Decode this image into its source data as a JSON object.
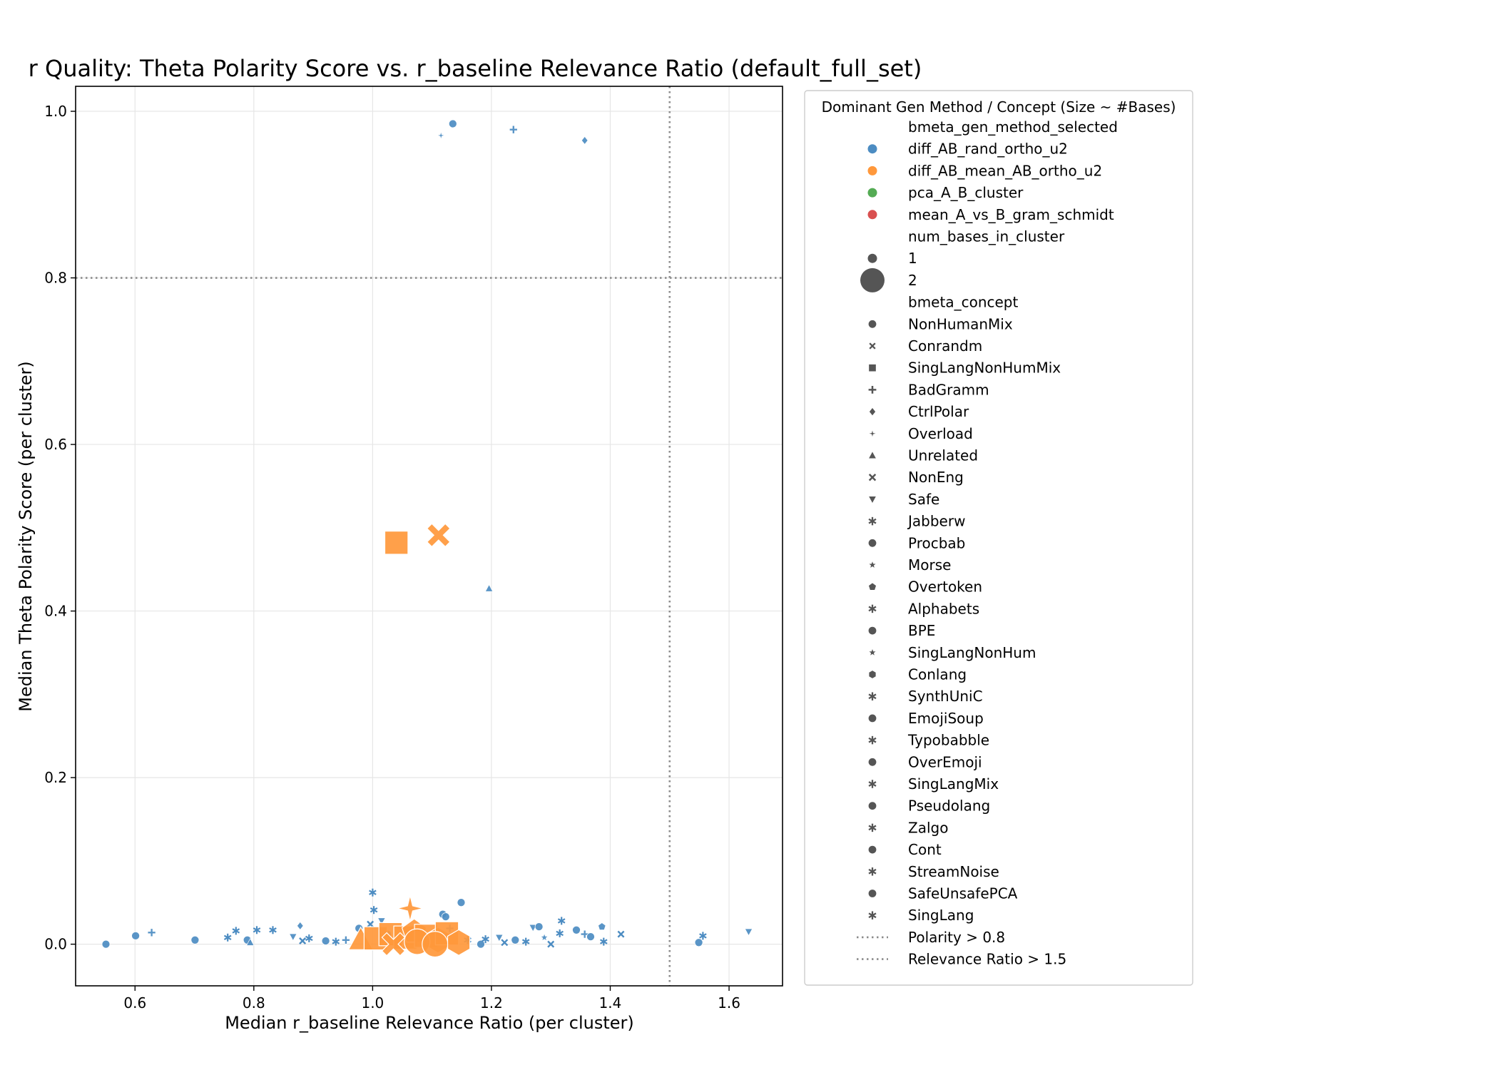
{
  "chart_data": {
    "type": "scatter",
    "title": "r Quality: Theta Polarity Score vs. r_baseline Relevance Ratio (default_full_set)",
    "xlabel": "Median r_baseline Relevance Ratio (per cluster)",
    "ylabel": "Median Theta Polarity Score (per cluster)",
    "xlim": [
      0.5,
      1.69
    ],
    "ylim": [
      -0.05,
      1.03
    ],
    "xticks": [
      0.6,
      0.8,
      1.0,
      1.2,
      1.4,
      1.6
    ],
    "yticks": [
      0.0,
      0.2,
      0.4,
      0.6,
      0.8,
      1.0
    ],
    "grid": true,
    "reference_lines": [
      {
        "orientation": "horizontal",
        "value": 0.8,
        "label": "Polarity > 0.8"
      },
      {
        "orientation": "vertical",
        "value": 1.5,
        "label": "Relevance Ratio > 1.5"
      }
    ],
    "legend": {
      "placement": "outside-right",
      "title": "Dominant Gen Method / Concept (Size ~ #Bases)",
      "hue_title": "bmeta_gen_method_selected",
      "hue": [
        {
          "name": "diff_AB_rand_ortho_u2",
          "color": "#4c8cc2"
        },
        {
          "name": "diff_AB_mean_AB_ortho_u2",
          "color": "#ff983b"
        },
        {
          "name": "pca_A_B_cluster",
          "color": "#54ab54"
        },
        {
          "name": "mean_A_vs_B_gram_schmidt",
          "color": "#d95050"
        }
      ],
      "size_title": "num_bases_in_cluster",
      "sizes": [
        {
          "name": "1",
          "value": 1
        },
        {
          "name": "2",
          "value": 2
        }
      ],
      "style_title": "bmeta_concept",
      "styles": [
        {
          "name": "NonHumanMix",
          "marker": "circle"
        },
        {
          "name": "Conrandm",
          "marker": "x"
        },
        {
          "name": "SingLangNonHumMix",
          "marker": "square"
        },
        {
          "name": "BadGramm",
          "marker": "plus"
        },
        {
          "name": "CtrlPolar",
          "marker": "diamond"
        },
        {
          "name": "Overload",
          "marker": "star4"
        },
        {
          "name": "Unrelated",
          "marker": "triangle-up"
        },
        {
          "name": "NonEng",
          "marker": "x-thin"
        },
        {
          "name": "Safe",
          "marker": "triangle-down"
        },
        {
          "name": "Jabberw",
          "marker": "asterisk"
        },
        {
          "name": "Procbab",
          "marker": "circle"
        },
        {
          "name": "Morse",
          "marker": "star5"
        },
        {
          "name": "Overtoken",
          "marker": "pentagon"
        },
        {
          "name": "Alphabets",
          "marker": "asterisk"
        },
        {
          "name": "BPE",
          "marker": "circle"
        },
        {
          "name": "SingLangNonHum",
          "marker": "star5"
        },
        {
          "name": "Conlang",
          "marker": "hexagon"
        },
        {
          "name": "SynthUniC",
          "marker": "asterisk"
        },
        {
          "name": "EmojiSoup",
          "marker": "circle"
        },
        {
          "name": "Typobabble",
          "marker": "asterisk"
        },
        {
          "name": "OverEmoji",
          "marker": "circle"
        },
        {
          "name": "SingLangMix",
          "marker": "asterisk"
        },
        {
          "name": "Pseudolang",
          "marker": "circle"
        },
        {
          "name": "Zalgo",
          "marker": "asterisk"
        },
        {
          "name": "Cont",
          "marker": "circle"
        },
        {
          "name": "StreamNoise",
          "marker": "asterisk"
        },
        {
          "name": "SafeUnsafePCA",
          "marker": "circle"
        },
        {
          "name": "SingLang",
          "marker": "asterisk"
        }
      ]
    },
    "series": [
      {
        "method": "diff_AB_rand_ortho_u2",
        "points": [
          {
            "x": 1.135,
            "y": 0.985,
            "marker": "circle",
            "size": 1
          },
          {
            "x": 1.115,
            "y": 0.971,
            "marker": "star4",
            "size": 1
          },
          {
            "x": 1.237,
            "y": 0.978,
            "marker": "plus",
            "size": 1
          },
          {
            "x": 1.357,
            "y": 0.965,
            "marker": "diamond",
            "size": 1
          },
          {
            "x": 1.196,
            "y": 0.427,
            "marker": "triangle-up",
            "size": 1
          },
          {
            "x": 0.551,
            "y": 0.0,
            "marker": "circle",
            "size": 1
          },
          {
            "x": 0.601,
            "y": 0.01,
            "marker": "circle",
            "size": 1
          },
          {
            "x": 0.628,
            "y": 0.014,
            "marker": "plus",
            "size": 1
          },
          {
            "x": 0.701,
            "y": 0.005,
            "marker": "circle",
            "size": 1
          },
          {
            "x": 0.756,
            "y": 0.008,
            "marker": "asterisk",
            "size": 1
          },
          {
            "x": 0.77,
            "y": 0.016,
            "marker": "asterisk",
            "size": 1
          },
          {
            "x": 0.789,
            "y": 0.005,
            "marker": "circle",
            "size": 1
          },
          {
            "x": 0.794,
            "y": 0.002,
            "marker": "triangle-up",
            "size": 1
          },
          {
            "x": 0.805,
            "y": 0.017,
            "marker": "asterisk",
            "size": 1
          },
          {
            "x": 0.832,
            "y": 0.017,
            "marker": "asterisk",
            "size": 1
          },
          {
            "x": 0.866,
            "y": 0.009,
            "marker": "triangle-down",
            "size": 1
          },
          {
            "x": 0.878,
            "y": 0.022,
            "marker": "diamond",
            "size": 1
          },
          {
            "x": 0.882,
            "y": 0.004,
            "marker": "x-thin",
            "size": 1
          },
          {
            "x": 0.893,
            "y": 0.007,
            "marker": "asterisk",
            "size": 1
          },
          {
            "x": 0.921,
            "y": 0.004,
            "marker": "circle",
            "size": 1
          },
          {
            "x": 0.938,
            "y": 0.003,
            "marker": "asterisk",
            "size": 1
          },
          {
            "x": 0.955,
            "y": 0.005,
            "marker": "plus",
            "size": 1
          },
          {
            "x": 0.977,
            "y": 0.019,
            "marker": "circle",
            "size": 1
          },
          {
            "x": 0.996,
            "y": 0.024,
            "marker": "x-thin",
            "size": 1
          },
          {
            "x": 1.0,
            "y": 0.062,
            "marker": "asterisk",
            "size": 1
          },
          {
            "x": 1.002,
            "y": 0.041,
            "marker": "asterisk",
            "size": 1
          },
          {
            "x": 1.015,
            "y": 0.028,
            "marker": "triangle-down",
            "size": 1
          },
          {
            "x": 1.025,
            "y": 0.012,
            "marker": "circle",
            "size": 1
          },
          {
            "x": 1.118,
            "y": 0.036,
            "marker": "circle",
            "size": 1
          },
          {
            "x": 1.123,
            "y": 0.033,
            "marker": "circle",
            "size": 1
          },
          {
            "x": 1.149,
            "y": 0.05,
            "marker": "circle",
            "size": 1
          },
          {
            "x": 1.13,
            "y": 0.019,
            "marker": "plus",
            "size": 1
          },
          {
            "x": 1.16,
            "y": 0.005,
            "marker": "asterisk",
            "size": 1
          },
          {
            "x": 1.182,
            "y": 0.0,
            "marker": "circle",
            "size": 1
          },
          {
            "x": 1.19,
            "y": 0.006,
            "marker": "asterisk",
            "size": 1
          },
          {
            "x": 1.213,
            "y": 0.008,
            "marker": "triangle-down",
            "size": 1
          },
          {
            "x": 1.222,
            "y": 0.002,
            "marker": "x-thin",
            "size": 1
          },
          {
            "x": 1.24,
            "y": 0.005,
            "marker": "circle",
            "size": 1
          },
          {
            "x": 1.258,
            "y": 0.003,
            "marker": "asterisk",
            "size": 1
          },
          {
            "x": 1.27,
            "y": 0.02,
            "marker": "triangle-down",
            "size": 1
          },
          {
            "x": 1.28,
            "y": 0.021,
            "marker": "circle",
            "size": 1
          },
          {
            "x": 1.289,
            "y": 0.008,
            "marker": "star5",
            "size": 1
          },
          {
            "x": 1.3,
            "y": 0.0,
            "marker": "x-thin",
            "size": 1
          },
          {
            "x": 1.315,
            "y": 0.013,
            "marker": "asterisk",
            "size": 1
          },
          {
            "x": 1.318,
            "y": 0.028,
            "marker": "asterisk",
            "size": 1
          },
          {
            "x": 1.343,
            "y": 0.017,
            "marker": "circle",
            "size": 1
          },
          {
            "x": 1.357,
            "y": 0.012,
            "marker": "plus",
            "size": 1
          },
          {
            "x": 1.367,
            "y": 0.009,
            "marker": "circle",
            "size": 1
          },
          {
            "x": 1.386,
            "y": 0.021,
            "marker": "pentagon",
            "size": 1
          },
          {
            "x": 1.389,
            "y": 0.003,
            "marker": "asterisk",
            "size": 1
          },
          {
            "x": 1.418,
            "y": 0.012,
            "marker": "x-thin",
            "size": 1
          },
          {
            "x": 1.549,
            "y": 0.002,
            "marker": "circle",
            "size": 1
          },
          {
            "x": 1.556,
            "y": 0.01,
            "marker": "asterisk",
            "size": 1
          },
          {
            "x": 1.633,
            "y": 0.015,
            "marker": "triangle-down",
            "size": 1
          }
        ]
      },
      {
        "method": "diff_AB_mean_AB_ortho_u2",
        "points": [
          {
            "x": 1.04,
            "y": 0.482,
            "marker": "square",
            "size": 2
          },
          {
            "x": 1.111,
            "y": 0.491,
            "marker": "x",
            "size": 2
          },
          {
            "x": 1.063,
            "y": 0.043,
            "marker": "star4",
            "size": 2
          },
          {
            "x": 0.98,
            "y": 0.005,
            "marker": "triangle-up",
            "size": 2
          },
          {
            "x": 1.005,
            "y": 0.007,
            "marker": "square",
            "size": 2
          },
          {
            "x": 1.03,
            "y": 0.012,
            "marker": "square",
            "size": 2
          },
          {
            "x": 1.055,
            "y": 0.008,
            "marker": "square",
            "size": 2
          },
          {
            "x": 1.07,
            "y": 0.015,
            "marker": "pentagon",
            "size": 2
          },
          {
            "x": 1.09,
            "y": 0.01,
            "marker": "square",
            "size": 2
          },
          {
            "x": 1.11,
            "y": 0.005,
            "marker": "hexagon",
            "size": 2
          },
          {
            "x": 1.125,
            "y": 0.013,
            "marker": "square",
            "size": 2
          },
          {
            "x": 1.035,
            "y": 0.0,
            "marker": "x",
            "size": 2
          },
          {
            "x": 1.075,
            "y": 0.003,
            "marker": "circle",
            "size": 2
          },
          {
            "x": 1.105,
            "y": 0.0,
            "marker": "circle",
            "size": 2
          },
          {
            "x": 1.145,
            "y": 0.002,
            "marker": "hexagon",
            "size": 2
          }
        ]
      }
    ]
  }
}
